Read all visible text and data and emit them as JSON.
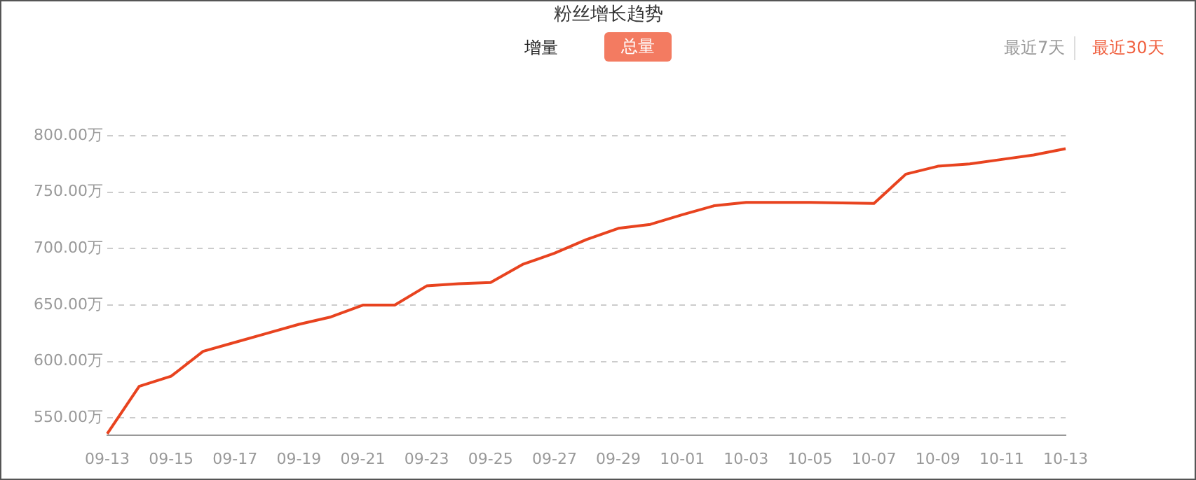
{
  "chart_data": {
    "type": "line",
    "title": "粉丝增长趋势",
    "annotations": [
      "增量",
      "总量",
      "最近7天",
      "最近30天"
    ],
    "categories": [
      "09-13",
      null,
      "09-15",
      null,
      "09-17",
      null,
      "09-19",
      null,
      "09-21",
      null,
      "09-23",
      null,
      "09-25",
      null,
      "09-27",
      null,
      "09-29",
      null,
      "10-01",
      null,
      "10-03",
      null,
      "10-05",
      null,
      "10-07",
      null,
      "10-09",
      null,
      "10-11",
      null,
      "10-13"
    ],
    "series": [
      {
        "color": "#e8431f",
        "values": [
          536,
          578,
          587,
          609,
          617,
          625,
          633,
          639.5,
          650,
          650,
          667,
          669,
          670,
          686,
          696,
          708,
          718,
          721.5,
          730,
          738,
          741,
          741,
          741,
          740.5,
          740,
          766,
          773,
          775,
          779,
          783,
          788.5
        ]
      }
    ],
    "ylim": [
      535,
      800
    ],
    "yticks": [
      {
        "value": 550,
        "label": "550.00万"
      },
      {
        "value": 600,
        "label": "600.00万"
      },
      {
        "value": 650,
        "label": "650.00万"
      },
      {
        "value": 700,
        "label": "700.00万"
      },
      {
        "value": 750,
        "label": "750.00万"
      },
      {
        "value": 800,
        "label": "800.00万"
      }
    ],
    "grid": "y",
    "legend": false,
    "marker": "none",
    "line_style": "solid"
  }
}
